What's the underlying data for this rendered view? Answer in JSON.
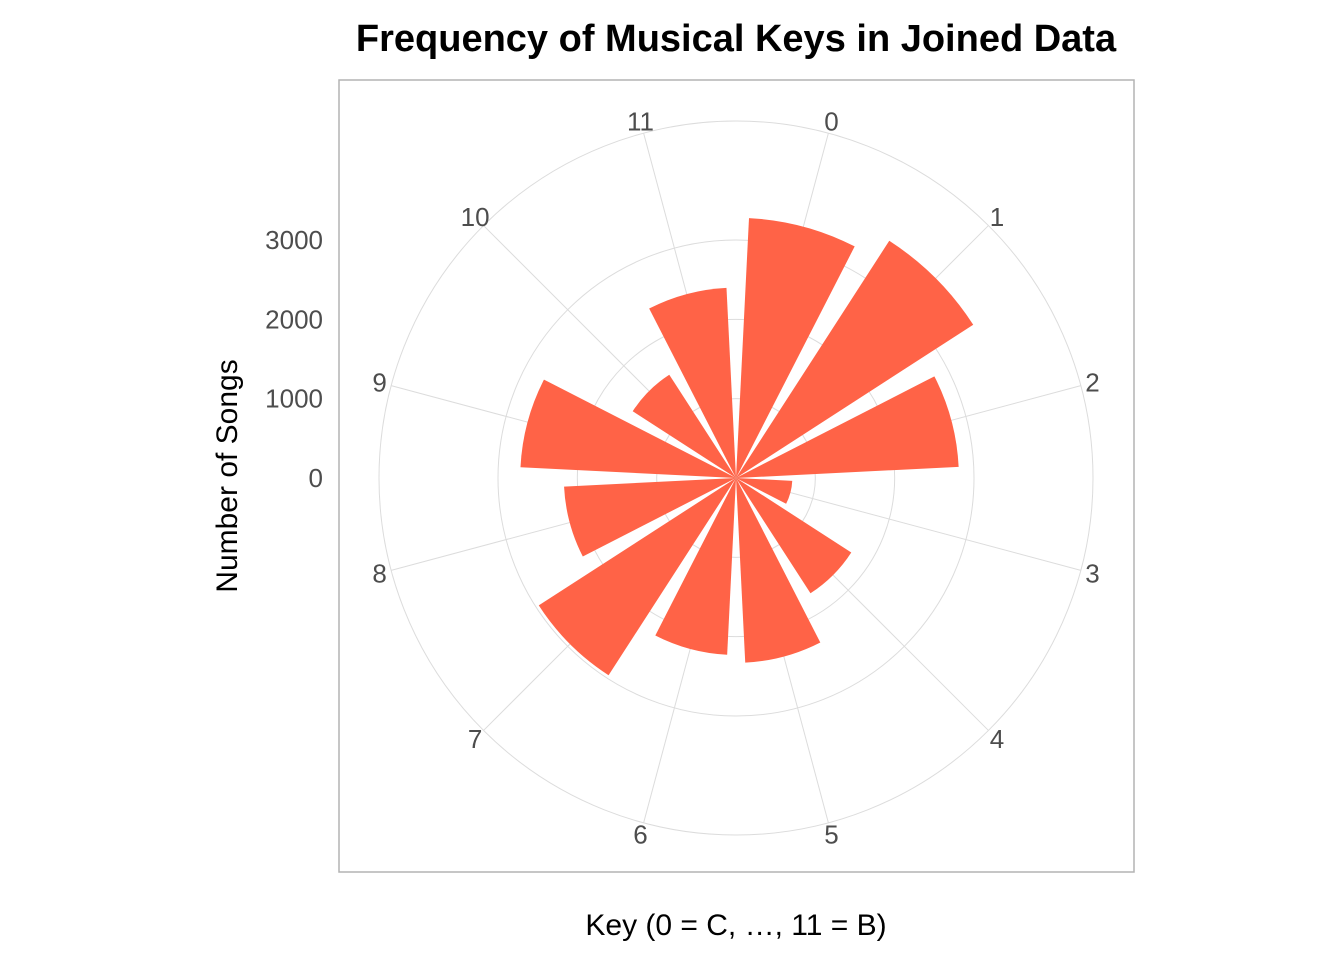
{
  "chart_data": {
    "type": "bar",
    "coord": "polar",
    "title": "Frequency of Musical Keys in Joined Data",
    "xlabel": "Key (0 = C, …, 11 = B)",
    "ylabel": "Number of Songs",
    "categories": [
      "0",
      "1",
      "2",
      "3",
      "4",
      "5",
      "6",
      "7",
      "8",
      "9",
      "10",
      "11"
    ],
    "values": [
      3280,
      3560,
      2810,
      710,
      1730,
      2330,
      2230,
      2960,
      2170,
      2720,
      1550,
      2400
    ],
    "radial_ticks": [
      "0",
      "1000",
      "2000",
      "3000"
    ],
    "radial_tick_values": [
      0,
      1000,
      2000,
      3000
    ],
    "ylim": [
      0,
      4500
    ],
    "grid": true,
    "legend": "none",
    "colors": {
      "bar": "#ff6347",
      "grid": "#dcdcdc",
      "panel_border": "#b3b3b3"
    }
  }
}
